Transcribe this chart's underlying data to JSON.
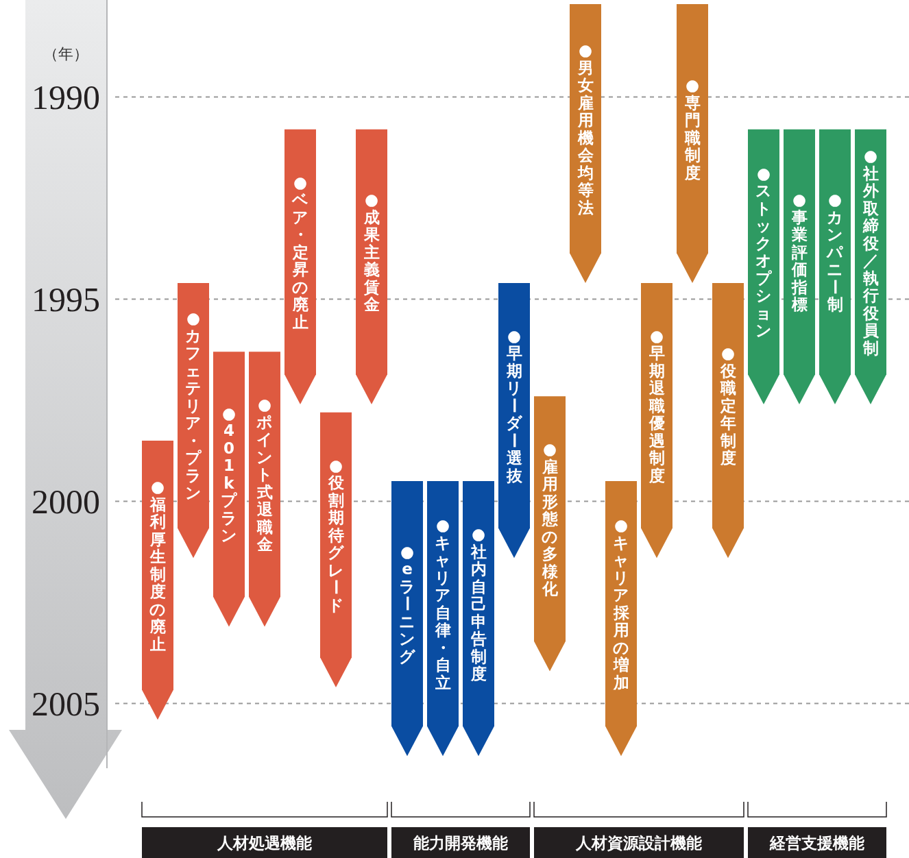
{
  "chart_data": {
    "type": "bar",
    "ylabel": "（年）",
    "categories": [
      "●福利厚生制度の廃止",
      "●カフェテリア・プラン",
      "●401kプラン",
      "●ポイント式退職金",
      "●ベア・定昇の廃止",
      "●役割期待グレード",
      "●成果主義賃金",
      "●eラーニング",
      "●キャリア自律・自立",
      "●社内自己申告制度",
      "●早期リーダー選抜",
      "●雇用形態の多様化",
      "●男女雇用機会均等法",
      "●キャリア採用の増加",
      "●早期退職優遇制度",
      "●専門職制度",
      "●役職定年制度",
      "●ストックオプション",
      "●事業評価指標",
      "●カンパニー制",
      "●社外取締役／執行役員制"
    ],
    "series": [
      {
        "color": "#de5a40",
        "values": [
          6.9,
          6.8,
          6.8,
          6.8,
          6.8,
          6.8,
          6.8,
          null,
          null,
          null,
          null,
          null,
          null,
          null,
          null,
          null,
          null,
          null,
          null,
          null,
          null
        ],
        "base": [
          1998.5,
          1994.6,
          1996.3,
          1996.3,
          1990.8,
          1997.8,
          1990.8,
          null,
          null,
          null,
          null,
          null,
          null,
          null,
          null,
          null,
          null,
          null,
          null,
          null,
          null
        ]
      },
      {
        "color": "#0a4da2",
        "values": [
          null,
          null,
          null,
          null,
          null,
          null,
          null,
          6.8,
          6.8,
          6.8,
          6.8,
          null,
          null,
          null,
          null,
          null,
          null,
          null,
          null,
          null,
          null
        ],
        "base": [
          null,
          null,
          null,
          null,
          null,
          null,
          null,
          1999.5,
          1999.5,
          1999.5,
          1994.6,
          null,
          null,
          null,
          null,
          null,
          null,
          null,
          null,
          null,
          null
        ]
      },
      {
        "color": "#cc7a2e",
        "values": [
          null,
          null,
          null,
          null,
          null,
          null,
          null,
          null,
          null,
          null,
          null,
          6.8,
          6.9,
          6.8,
          6.8,
          6.9,
          6.8,
          null,
          null,
          null,
          null
        ],
        "base": [
          null,
          null,
          null,
          null,
          null,
          null,
          null,
          null,
          null,
          null,
          null,
          1997.4,
          1987.7,
          1999.5,
          1994.6,
          1987.7,
          1994.6,
          null,
          null,
          null,
          null
        ]
      },
      {
        "color": "#2e9a62",
        "values": [
          null,
          null,
          null,
          null,
          null,
          null,
          null,
          null,
          null,
          null,
          null,
          null,
          null,
          null,
          null,
          null,
          null,
          6.8,
          6.8,
          6.8,
          6.8
        ],
        "base": [
          null,
          null,
          null,
          null,
          null,
          null,
          null,
          null,
          null,
          null,
          null,
          null,
          null,
          null,
          null,
          null,
          null,
          1990.8,
          1990.8,
          1990.8,
          1990.8
        ]
      }
    ],
    "annotations": [
      "人材処遇機能",
      "能力開発機能",
      "人材資源設計機能",
      "経営支援機能"
    ],
    "ylim": [
      2006.6,
      1987.6
    ],
    "yticks": [
      1990,
      1995,
      2000,
      2005
    ],
    "grid": "y"
  }
}
